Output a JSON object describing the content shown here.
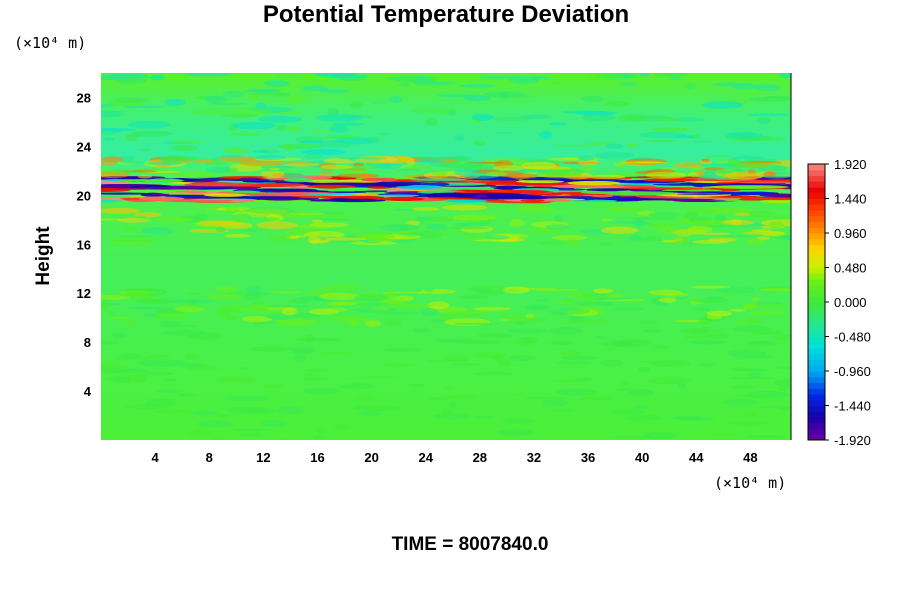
{
  "chart_data": {
    "type": "heatmap",
    "title": "Potential Temperature Deviation",
    "ylabel": "Height",
    "x_units": "(×10⁴ m)",
    "y_units": "(×10⁴ m)",
    "xlim": [
      0,
      51
    ],
    "ylim": [
      0,
      30
    ],
    "x_ticks": [
      4,
      8,
      12,
      16,
      20,
      24,
      28,
      32,
      36,
      40,
      44,
      48
    ],
    "y_ticks": [
      4,
      8,
      12,
      16,
      20,
      24,
      28
    ],
    "grid": false,
    "colorbar": {
      "placement": "right",
      "min": -1.92,
      "max": 1.92,
      "tick_values": [
        1.92,
        1.44,
        0.96,
        0.48,
        0.0,
        -0.48,
        -0.96,
        -1.44,
        -1.92
      ],
      "tick_labels": [
        "1.920",
        "1.440",
        "0.960",
        "0.480",
        "0.000",
        "-0.480",
        "-0.960",
        "-1.440",
        "-1.920"
      ]
    },
    "features": [
      {
        "height_range": [
          19.5,
          21.5
        ],
        "value_range": [
          -1.92,
          1.92
        ],
        "note": "strong alternating band"
      },
      {
        "height_range": [
          21.5,
          23.0
        ],
        "value_range": [
          -0.5,
          1.2
        ]
      },
      {
        "height_range": [
          16.0,
          19.0
        ],
        "value_range": [
          -0.3,
          0.8
        ]
      },
      {
        "height_range": [
          9.5,
          12.5
        ],
        "value_range": [
          -0.2,
          0.5
        ]
      },
      {
        "height_range": [
          0,
          9.5
        ],
        "value_range": [
          -0.1,
          0.1
        ]
      },
      {
        "height_range": [
          23.0,
          30.0
        ],
        "value_range": [
          -0.6,
          0.2
        ]
      }
    ]
  },
  "footer": {
    "time_text": "TIME = 8007840.0"
  }
}
